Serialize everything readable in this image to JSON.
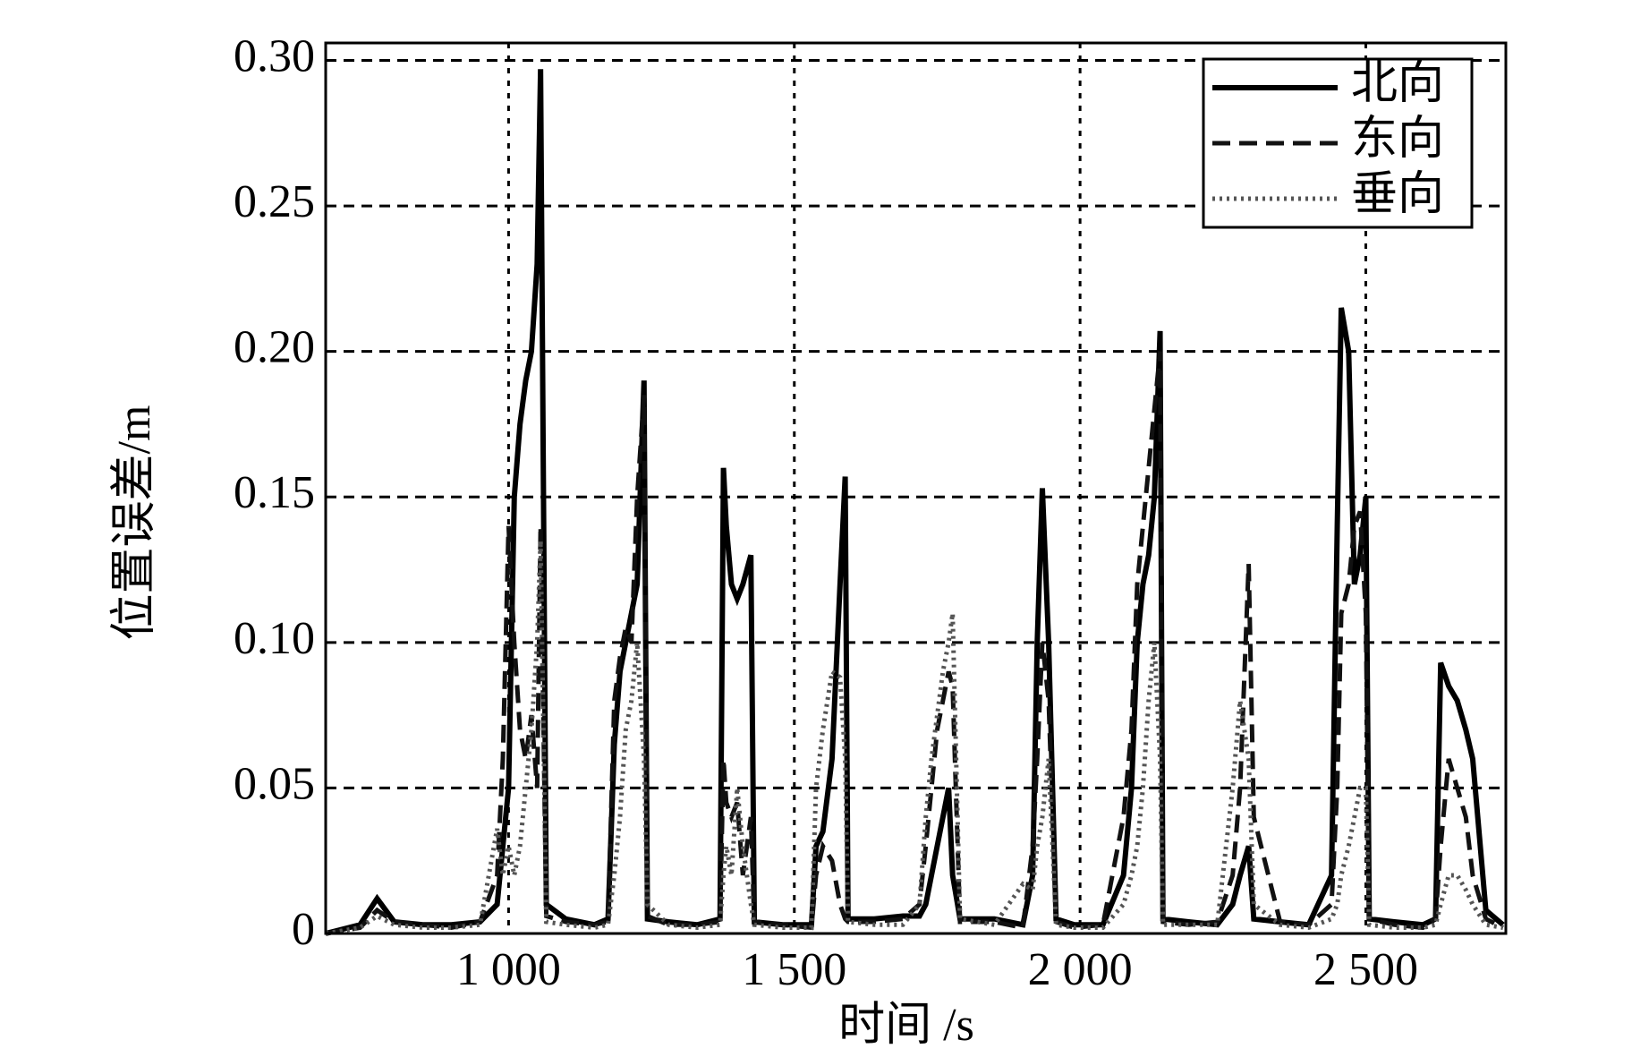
{
  "chart_data": {
    "type": "line",
    "xlabel": "时间 /s",
    "ylabel": "位置误差/m",
    "x": [
      680,
      740,
      770,
      800,
      850,
      900,
      950,
      980,
      990,
      1000,
      1010,
      1020,
      1030,
      1040,
      1050,
      1056,
      1066,
      1100,
      1150,
      1174,
      1185,
      1195,
      1205,
      1215,
      1225,
      1237,
      1243,
      1280,
      1330,
      1370,
      1376,
      1381,
      1390,
      1400,
      1410,
      1424,
      1430,
      1480,
      1530,
      1538,
      1550,
      1566,
      1580,
      1589,
      1594,
      1640,
      1690,
      1719,
      1730,
      1740,
      1750,
      1760,
      1770,
      1777,
      1790,
      1850,
      1900,
      1917,
      1925,
      1934,
      1945,
      1958,
      1990,
      2040,
      2076,
      2090,
      2100,
      2110,
      2120,
      2130,
      2140,
      2145,
      2190,
      2240,
      2267,
      2280,
      2295,
      2304,
      2350,
      2400,
      2440,
      2450,
      2457,
      2470,
      2480,
      2490,
      2500,
      2506,
      2550,
      2600,
      2622,
      2631,
      2645,
      2660,
      2675,
      2687,
      2710,
      2740
    ],
    "series": [
      {
        "name": "北向",
        "color": "#000000",
        "style": "solid",
        "values": [
          0,
          0.003,
          0.012,
          0.004,
          0.003,
          0.003,
          0.004,
          0.01,
          0.03,
          0.05,
          0.15,
          0.175,
          0.19,
          0.2,
          0.23,
          0.297,
          0.01,
          0.005,
          0.003,
          0.005,
          0.065,
          0.09,
          0.1,
          0.11,
          0.12,
          0.19,
          0.005,
          0.004,
          0.003,
          0.005,
          0.16,
          0.14,
          0.12,
          0.115,
          0.12,
          0.13,
          0.004,
          0.003,
          0.003,
          0.03,
          0.035,
          0.06,
          0.12,
          0.157,
          0.005,
          0.005,
          0.006,
          0.006,
          0.01,
          0.02,
          0.03,
          0.04,
          0.05,
          0.02,
          0.005,
          0.005,
          0.003,
          0.02,
          0.1,
          0.153,
          0.1,
          0.005,
          0.003,
          0.003,
          0.02,
          0.05,
          0.1,
          0.12,
          0.13,
          0.15,
          0.207,
          0.005,
          0.004,
          0.003,
          0.01,
          0.02,
          0.03,
          0.005,
          0.004,
          0.003,
          0.02,
          0.14,
          0.215,
          0.2,
          0.12,
          0.13,
          0.15,
          0.005,
          0.004,
          0.003,
          0.005,
          0.093,
          0.085,
          0.08,
          0.07,
          0.06,
          0.008,
          0.003
        ]
      },
      {
        "name": "东向",
        "color": "#111111",
        "style": "dashed",
        "values": [
          0,
          0.002,
          0.008,
          0.004,
          0.003,
          0.002,
          0.004,
          0.02,
          0.06,
          0.14,
          0.1,
          0.07,
          0.06,
          0.075,
          0.05,
          0.14,
          0.006,
          0.004,
          0.003,
          0.004,
          0.08,
          0.095,
          0.105,
          0.1,
          0.15,
          0.185,
          0.006,
          0.003,
          0.003,
          0.004,
          0.06,
          0.045,
          0.04,
          0.045,
          0.02,
          0.04,
          0.004,
          0.003,
          0.002,
          0.02,
          0.03,
          0.025,
          0.01,
          0.005,
          0.004,
          0.004,
          0.005,
          0.01,
          0.03,
          0.05,
          0.07,
          0.08,
          0.09,
          0.085,
          0.004,
          0.004,
          0.002,
          0.03,
          0.06,
          0.1,
          0.08,
          0.004,
          0.002,
          0.003,
          0.04,
          0.07,
          0.12,
          0.14,
          0.16,
          0.18,
          0.2,
          0.004,
          0.003,
          0.004,
          0.02,
          0.05,
          0.127,
          0.04,
          0.004,
          0.003,
          0.01,
          0.05,
          0.11,
          0.12,
          0.14,
          0.145,
          0.11,
          0.005,
          0.003,
          0.002,
          0.005,
          0.03,
          0.06,
          0.05,
          0.04,
          0.02,
          0.005,
          0.002
        ]
      },
      {
        "name": "垂向",
        "color": "#555555",
        "style": "dotted",
        "values": [
          0,
          0.002,
          0.006,
          0.003,
          0.002,
          0.002,
          0.003,
          0.036,
          0.02,
          0.03,
          0.02,
          0.03,
          0.05,
          0.07,
          0.1,
          0.135,
          0.004,
          0.003,
          0.002,
          0.003,
          0.02,
          0.04,
          0.07,
          0.08,
          0.1,
          0.06,
          0.01,
          0.003,
          0.002,
          0.003,
          0.02,
          0.03,
          0.02,
          0.05,
          0.03,
          0.01,
          0.003,
          0.002,
          0.002,
          0.05,
          0.07,
          0.09,
          0.088,
          0.06,
          0.004,
          0.003,
          0.003,
          0.01,
          0.04,
          0.06,
          0.075,
          0.09,
          0.1,
          0.11,
          0.005,
          0.003,
          0.017,
          0.015,
          0.03,
          0.04,
          0.06,
          0.003,
          0.002,
          0.002,
          0.01,
          0.02,
          0.03,
          0.05,
          0.08,
          0.1,
          0.06,
          0.003,
          0.003,
          0.003,
          0.05,
          0.08,
          0.06,
          0.01,
          0.003,
          0.002,
          0.005,
          0.01,
          0.02,
          0.03,
          0.04,
          0.05,
          0.05,
          0.003,
          0.002,
          0.002,
          0.003,
          0.01,
          0.02,
          0.02,
          0.015,
          0.01,
          0.003,
          0.002
        ]
      }
    ],
    "xlim": [
      680,
      2745
    ],
    "ylim": [
      0,
      0.306
    ],
    "xticks": [
      {
        "value": 1000,
        "label": "1 000"
      },
      {
        "value": 1500,
        "label": "1 500"
      },
      {
        "value": 2000,
        "label": "2 000"
      },
      {
        "value": 2500,
        "label": "2 500"
      }
    ],
    "yticks": [
      0,
      0.05,
      {
        "value": 0.1,
        "label": "0.10"
      },
      0.15,
      {
        "value": 0.2,
        "label": "0.20"
      },
      0.25,
      {
        "value": 0.3,
        "label": "0.30"
      }
    ],
    "grid": true,
    "legend": "upper right"
  }
}
